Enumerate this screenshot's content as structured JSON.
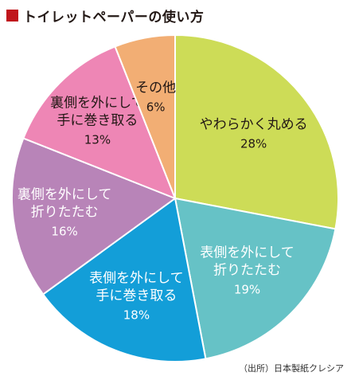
{
  "title": "トイレットペーパーの使い方",
  "source": "（出所）日本製紙クレシア",
  "chart_data": {
    "type": "pie",
    "title": "トイレットペーパーの使い方",
    "unit": "%",
    "start": "12 o'clock",
    "direction": "clockwise",
    "slices": [
      {
        "label_lines": [
          "やわらかく丸める"
        ],
        "value": 28,
        "color": "#cddc57",
        "text_color": "#231815"
      },
      {
        "label_lines": [
          "表側を外にして",
          "折りたたむ"
        ],
        "value": 19,
        "color": "#66c2c6",
        "text_color": "#ffffff"
      },
      {
        "label_lines": [
          "表側を外にして",
          "手に巻き取る"
        ],
        "value": 18,
        "color": "#139ed8",
        "text_color": "#ffffff"
      },
      {
        "label_lines": [
          "裏側を外にして",
          "折りたたむ"
        ],
        "value": 16,
        "color": "#b884b8",
        "text_color": "#ffffff"
      },
      {
        "label_lines": [
          "裏側を外にして",
          "手に巻き取る"
        ],
        "value": 13,
        "color": "#ee86b5",
        "text_color": "#231815"
      },
      {
        "label_lines": [
          "その他"
        ],
        "value": 6,
        "color": "#f2ae74",
        "text_color": "#231815"
      }
    ]
  }
}
